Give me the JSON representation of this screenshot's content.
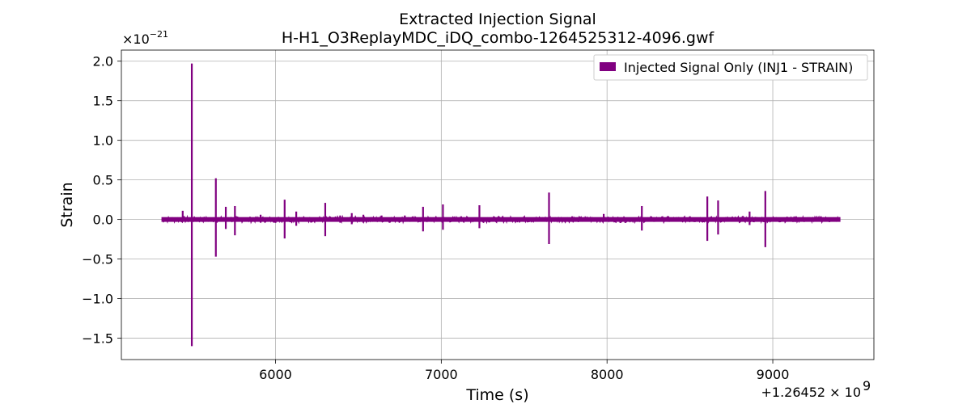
{
  "chart_data": {
    "type": "line",
    "title": "Extracted Injection Signal",
    "subtitle": "H-H1_O3ReplayMDC_iDQ_combo-1264525312-4096.gwf",
    "xlabel": "Time (s)",
    "ylabel": "Strain",
    "x_offset_label": "+1.26452 × 10",
    "x_offset_exponent": "9",
    "y_scale_label": "×10",
    "y_scale_exponent": "−21",
    "x_ticks": [
      6000,
      7000,
      8000,
      9000
    ],
    "x_tick_labels": [
      "6000",
      "7000",
      "8000",
      "9000"
    ],
    "y_ticks": [
      -1.5,
      -1.0,
      -0.5,
      0.0,
      0.5,
      1.0,
      1.5,
      2.0
    ],
    "y_tick_labels": [
      "−1.5",
      "−1.0",
      "−0.5",
      "0.0",
      "0.5",
      "1.0",
      "1.5",
      "2.0"
    ],
    "xlim": [
      5070,
      9610
    ],
    "ylim": [
      -1.77,
      2.14
    ],
    "grid": true,
    "legend_position": "top-right",
    "series": [
      {
        "name": "Injected Signal Only (INJ1 - STRAIN)",
        "color": "#800080",
        "baseline_range": [
          5312,
          9408
        ],
        "baseline_amplitude": 0.03,
        "spikes": [
          {
            "x": 5375,
            "max": 0.02,
            "min": -0.02
          },
          {
            "x": 5440,
            "max": 0.11,
            "min": -0.03
          },
          {
            "x": 5495,
            "max": 1.97,
            "min": -1.6
          },
          {
            "x": 5570,
            "max": 0.03,
            "min": -0.03
          },
          {
            "x": 5640,
            "max": 0.52,
            "min": -0.47
          },
          {
            "x": 5700,
            "max": 0.16,
            "min": -0.12
          },
          {
            "x": 5755,
            "max": 0.17,
            "min": -0.2
          },
          {
            "x": 5910,
            "max": 0.06,
            "min": -0.04
          },
          {
            "x": 6055,
            "max": 0.25,
            "min": -0.24
          },
          {
            "x": 6125,
            "max": 0.1,
            "min": -0.08
          },
          {
            "x": 6300,
            "max": 0.21,
            "min": -0.21
          },
          {
            "x": 6390,
            "max": 0.05,
            "min": -0.04
          },
          {
            "x": 6460,
            "max": 0.08,
            "min": -0.06
          },
          {
            "x": 6530,
            "max": 0.06,
            "min": -0.04
          },
          {
            "x": 6640,
            "max": 0.05,
            "min": -0.03
          },
          {
            "x": 6780,
            "max": 0.05,
            "min": -0.03
          },
          {
            "x": 6890,
            "max": 0.16,
            "min": -0.15
          },
          {
            "x": 7010,
            "max": 0.19,
            "min": -0.13
          },
          {
            "x": 7120,
            "max": 0.04,
            "min": -0.03
          },
          {
            "x": 7230,
            "max": 0.18,
            "min": -0.11
          },
          {
            "x": 7370,
            "max": 0.04,
            "min": -0.03
          },
          {
            "x": 7500,
            "max": 0.04,
            "min": -0.03
          },
          {
            "x": 7650,
            "max": 0.34,
            "min": -0.31
          },
          {
            "x": 7790,
            "max": 0.04,
            "min": -0.03
          },
          {
            "x": 7980,
            "max": 0.07,
            "min": -0.03
          },
          {
            "x": 8210,
            "max": 0.17,
            "min": -0.14
          },
          {
            "x": 8370,
            "max": 0.04,
            "min": -0.03
          },
          {
            "x": 8500,
            "max": 0.04,
            "min": -0.03
          },
          {
            "x": 8605,
            "max": 0.29,
            "min": -0.27
          },
          {
            "x": 8670,
            "max": 0.24,
            "min": -0.19
          },
          {
            "x": 8860,
            "max": 0.1,
            "min": -0.07
          },
          {
            "x": 8955,
            "max": 0.36,
            "min": -0.35
          },
          {
            "x": 9140,
            "max": 0.04,
            "min": -0.03
          },
          {
            "x": 9290,
            "max": 0.04,
            "min": -0.03
          }
        ]
      }
    ]
  }
}
